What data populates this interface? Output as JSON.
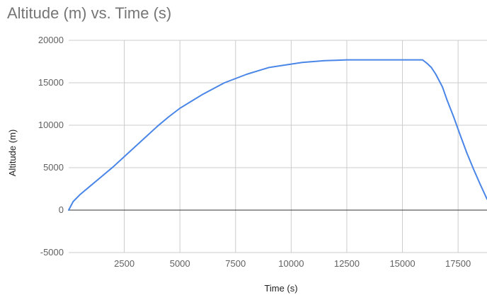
{
  "chart_data": {
    "type": "line",
    "title": "Altitude (m) vs. Time (s)",
    "xlabel": "Time (s)",
    "ylabel": "Altitude (m)",
    "xlim": [
      0,
      18800
    ],
    "ylim": [
      -5000,
      20000
    ],
    "xticks": [
      2500,
      5000,
      7500,
      10000,
      12500,
      15000,
      17500
    ],
    "yticks": [
      -5000,
      0,
      5000,
      10000,
      15000,
      20000
    ],
    "grid": true,
    "legend": "none",
    "series": [
      {
        "color": "#4a86e8",
        "x": [
          0,
          200,
          500,
          1000,
          1500,
          2000,
          2500,
          3000,
          3500,
          4000,
          4500,
          5000,
          5500,
          6000,
          6500,
          7000,
          7500,
          8000,
          8500,
          9000,
          9500,
          10000,
          10500,
          11000,
          11500,
          12000,
          12500,
          13000,
          13500,
          14000,
          14500,
          15000,
          15500,
          15900,
          16000,
          16100,
          16300,
          16500,
          16800,
          17000,
          17300,
          17600,
          17900,
          18200,
          18500,
          18800
        ],
        "y": [
          0,
          1000,
          1800,
          2900,
          4000,
          5100,
          6300,
          7500,
          8700,
          9900,
          11000,
          12000,
          12800,
          13600,
          14300,
          15000,
          15500,
          16000,
          16400,
          16800,
          17000,
          17200,
          17400,
          17500,
          17600,
          17650,
          17700,
          17700,
          17700,
          17700,
          17700,
          17700,
          17700,
          17700,
          17500,
          17300,
          16800,
          16000,
          14500,
          13000,
          11000,
          8800,
          6700,
          4800,
          3000,
          1300
        ]
      }
    ]
  }
}
